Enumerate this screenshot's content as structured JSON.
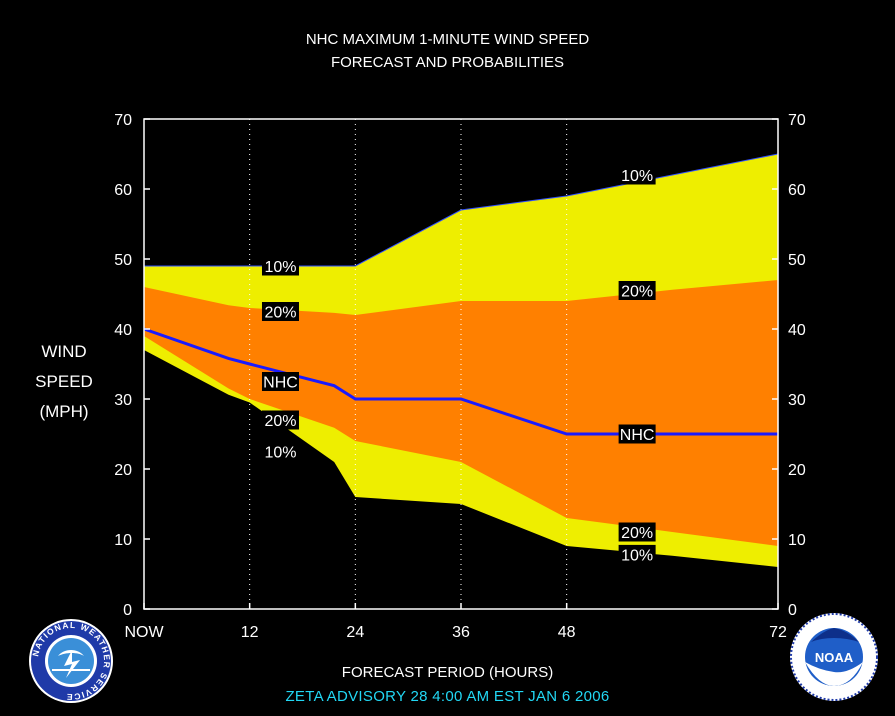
{
  "title_line1": "NHC MAXIMUM 1-MINUTE WIND SPEED",
  "title_line2": "FORECAST AND PROBABILITIES",
  "ylabel_lines": [
    "WIND",
    "SPEED",
    "(MPH)"
  ],
  "xlabel": "FORECAST PERIOD (HOURS)",
  "footer": "ZETA   ADVISORY  28 4:00  AM  EST  JAN  6  2006",
  "logos": {
    "left": "NATIONAL WEATHER SERVICE",
    "right_center": "NOAA"
  },
  "colors": {
    "background": "#000000",
    "outer_band": "#eeee00",
    "inner_band": "#ff8000",
    "nhc_line": "#1a1aff",
    "footer_text": "#22d7f4"
  },
  "chart_data": {
    "type": "area",
    "title": "NHC MAXIMUM 1-MINUTE WIND SPEED FORECAST AND PROBABILITIES",
    "xlabel": "FORECAST PERIOD (HOURS)",
    "ylabel": "WIND SPEED (MPH)",
    "xlim": [
      0,
      72
    ],
    "ylim": [
      0,
      70
    ],
    "x_ticks": [
      0,
      12,
      24,
      36,
      48,
      72
    ],
    "x_tick_labels": [
      "NOW",
      "12",
      "24",
      "36",
      "48",
      "72"
    ],
    "y_ticks": [
      0,
      10,
      20,
      30,
      40,
      50,
      60,
      70
    ],
    "y_tick_labels": [
      "0",
      "10",
      "20",
      "30",
      "40",
      "50",
      "60",
      "70"
    ],
    "vertical_dotted_grid": true,
    "x": [
      0,
      9.6,
      12,
      21.6,
      24,
      36,
      48,
      60,
      72
    ],
    "series": [
      {
        "name": "10%",
        "values": [
          49,
          49,
          49,
          49,
          49,
          57,
          59,
          62,
          65
        ]
      },
      {
        "name": "20%",
        "values": [
          46,
          43.4,
          43,
          42.3,
          42,
          44,
          44,
          45.6,
          47
        ]
      },
      {
        "name": "NHC",
        "values": [
          40,
          35.8,
          35,
          31.9,
          30,
          30,
          25,
          25,
          25
        ]
      },
      {
        "name": "20%",
        "values": [
          39,
          31.5,
          30,
          25.9,
          24,
          21,
          13,
          11,
          9
        ]
      },
      {
        "name": "10%",
        "values": [
          37,
          30.6,
          29.5,
          21,
          16,
          15,
          9,
          7.6,
          6
        ]
      }
    ],
    "labels": [
      {
        "text": "10%",
        "x": 15.5,
        "y": 49
      },
      {
        "text": "20%",
        "x": 15.5,
        "y": 42.5
      },
      {
        "text": "NHC",
        "x": 15.5,
        "y": 32.5
      },
      {
        "text": "20%",
        "x": 15.5,
        "y": 27
      },
      {
        "text": "10%",
        "x": 15.5,
        "y": 22.5
      },
      {
        "text": "10%",
        "x": 56,
        "y": 62
      },
      {
        "text": "20%",
        "x": 56,
        "y": 45.5
      },
      {
        "text": "NHC",
        "x": 56,
        "y": 25
      },
      {
        "text": "20%",
        "x": 56,
        "y": 11
      },
      {
        "text": "10%",
        "x": 56,
        "y": 7.8
      }
    ]
  }
}
